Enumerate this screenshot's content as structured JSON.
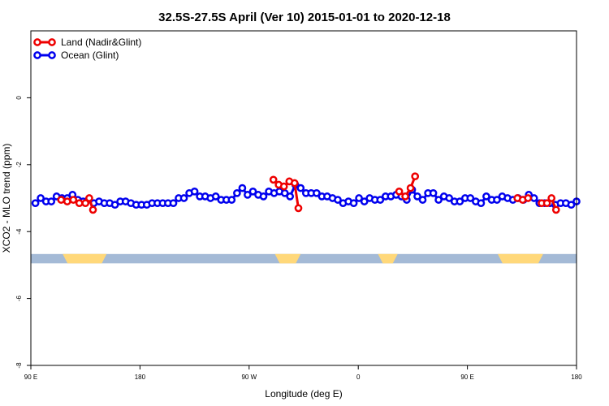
{
  "chart_data": {
    "type": "line",
    "title": "32.5S-27.5S April (Ver 10)   2015-01-01 to 2020-12-18",
    "xlabel": "Longitude (deg E)",
    "ylabel": "XCO2 - MLO trend (ppm)",
    "xlim": [
      90,
      450
    ],
    "ylim": [
      -8,
      2
    ],
    "xticks": [
      90,
      162,
      234,
      306,
      378,
      450
    ],
    "xtick_labels": [
      "90 E",
      "180",
      "90 W",
      "0",
      "90 E",
      "180"
    ],
    "yticks": [
      -8,
      -6,
      -4,
      -2,
      0
    ],
    "ytick_labels": [
      "-8",
      "-6",
      "-4",
      "-2",
      "0"
    ],
    "legend_position": "top-left",
    "series": [
      {
        "name": "Land (Nadir&Glint)",
        "color": "#ee0000",
        "segments": [
          [
            [
              110.0,
              -3.05
            ],
            [
              114.0,
              -3.1
            ],
            [
              118.0,
              -3.05
            ],
            [
              122.0,
              -3.15
            ],
            [
              126.0,
              -3.15
            ],
            [
              128.5,
              -3.0
            ],
            [
              131.0,
              -3.35
            ]
          ],
          [
            [
              250.0,
              -2.45
            ],
            [
              253.5,
              -2.6
            ],
            [
              257.0,
              -2.65
            ],
            [
              260.5,
              -2.5
            ],
            [
              264.0,
              -2.55
            ],
            [
              266.5,
              -3.3
            ]
          ],
          [
            [
              333.0,
              -2.8
            ],
            [
              337.0,
              -2.95
            ],
            [
              340.5,
              -2.7
            ],
            [
              343.5,
              -2.35
            ]
          ],
          [
            [
              411.0,
              -3.0
            ],
            [
              414.5,
              -3.05
            ],
            [
              418.0,
              -3.0
            ]
          ],
          [
            [
              427.0,
              -3.15
            ],
            [
              430.5,
              -3.15
            ],
            [
              433.5,
              -3.0
            ],
            [
              436.5,
              -3.35
            ]
          ]
        ]
      },
      {
        "name": "Ocean (Glint)",
        "color": "#0000ee",
        "segments": [
          [
            [
              93.0,
              -3.15
            ],
            [
              96.5,
              -3.0
            ],
            [
              100.0,
              -3.1
            ],
            [
              103.5,
              -3.1
            ],
            [
              107.0,
              -2.95
            ],
            [
              110.5,
              -3.0
            ],
            [
              114.0,
              -3.0
            ],
            [
              117.5,
              -2.9
            ],
            [
              121.0,
              -3.05
            ],
            [
              124.5,
              -3.1
            ],
            [
              128.0,
              -3.05
            ],
            [
              131.5,
              -3.15
            ],
            [
              135.0,
              -3.1
            ],
            [
              138.5,
              -3.15
            ],
            [
              142.0,
              -3.15
            ],
            [
              145.5,
              -3.2
            ],
            [
              149.0,
              -3.1
            ],
            [
              152.5,
              -3.1
            ],
            [
              156.0,
              -3.15
            ],
            [
              159.5,
              -3.2
            ],
            [
              163.0,
              -3.2
            ],
            [
              166.5,
              -3.2
            ],
            [
              170.0,
              -3.15
            ],
            [
              173.5,
              -3.15
            ],
            [
              177.0,
              -3.15
            ],
            [
              180.5,
              -3.15
            ],
            [
              184.0,
              -3.15
            ],
            [
              187.5,
              -3.0
            ],
            [
              191.0,
              -3.0
            ],
            [
              194.5,
              -2.85
            ],
            [
              198.0,
              -2.8
            ],
            [
              201.5,
              -2.95
            ],
            [
              205.0,
              -2.95
            ],
            [
              208.5,
              -3.0
            ],
            [
              212.0,
              -2.95
            ],
            [
              215.5,
              -3.05
            ],
            [
              219.0,
              -3.05
            ],
            [
              222.5,
              -3.05
            ],
            [
              226.0,
              -2.85
            ],
            [
              229.5,
              -2.7
            ],
            [
              233.0,
              -2.9
            ],
            [
              236.5,
              -2.8
            ],
            [
              240.0,
              -2.9
            ],
            [
              243.5,
              -2.95
            ],
            [
              247.0,
              -2.8
            ],
            [
              250.5,
              -2.85
            ],
            [
              254.0,
              -2.8
            ],
            [
              257.5,
              -2.85
            ],
            [
              261.0,
              -2.95
            ],
            [
              264.5,
              -2.6
            ],
            [
              268.0,
              -2.7
            ],
            [
              271.5,
              -2.85
            ],
            [
              275.0,
              -2.85
            ],
            [
              278.5,
              -2.85
            ],
            [
              282.0,
              -2.95
            ],
            [
              285.5,
              -2.95
            ],
            [
              289.0,
              -3.0
            ],
            [
              292.5,
              -3.05
            ],
            [
              296.0,
              -3.15
            ],
            [
              299.5,
              -3.1
            ],
            [
              303.0,
              -3.15
            ],
            [
              306.5,
              -3.0
            ],
            [
              310.0,
              -3.1
            ],
            [
              313.5,
              -3.0
            ],
            [
              317.0,
              -3.05
            ],
            [
              320.5,
              -3.05
            ],
            [
              324.0,
              -2.95
            ],
            [
              327.5,
              -2.95
            ],
            [
              331.0,
              -2.9
            ],
            [
              334.5,
              -2.95
            ],
            [
              338.0,
              -3.05
            ],
            [
              341.5,
              -2.75
            ],
            [
              345.0,
              -2.95
            ],
            [
              348.5,
              -3.05
            ],
            [
              352.0,
              -2.85
            ],
            [
              355.5,
              -2.85
            ],
            [
              359.0,
              -3.05
            ],
            [
              362.5,
              -2.95
            ],
            [
              366.0,
              -3.0
            ],
            [
              369.5,
              -3.1
            ],
            [
              373.0,
              -3.1
            ],
            [
              376.5,
              -3.0
            ],
            [
              380.0,
              -3.0
            ],
            [
              383.5,
              -3.1
            ],
            [
              387.0,
              -3.15
            ],
            [
              390.5,
              -2.95
            ],
            [
              394.0,
              -3.05
            ],
            [
              397.5,
              -3.05
            ],
            [
              401.0,
              -2.95
            ],
            [
              404.5,
              -3.0
            ],
            [
              408.0,
              -3.05
            ],
            [
              411.5,
              -3.0
            ],
            [
              415.0,
              -3.05
            ],
            [
              418.5,
              -2.9
            ],
            [
              422.0,
              -3.0
            ],
            [
              425.5,
              -3.15
            ],
            [
              429.0,
              -3.15
            ],
            [
              432.5,
              -3.15
            ],
            [
              436.0,
              -3.2
            ],
            [
              439.5,
              -3.15
            ],
            [
              443.0,
              -3.15
            ],
            [
              446.5,
              -3.2
            ],
            [
              450.0,
              -3.1
            ]
          ]
        ]
      }
    ],
    "land_band": {
      "y_range": [
        -4.95,
        -4.67
      ],
      "ocean_color": "#a4bad6",
      "land_color": "#ffd87a",
      "land_spans": [
        [
          111,
          140
        ],
        [
          251,
          268
        ],
        [
          319,
          332
        ],
        [
          398,
          428
        ]
      ]
    }
  }
}
